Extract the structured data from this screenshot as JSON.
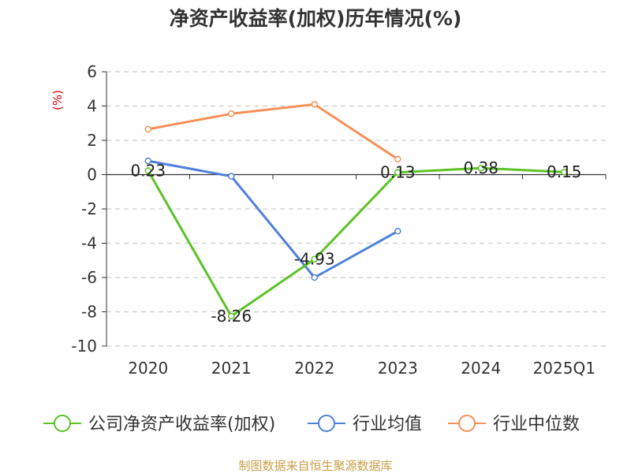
{
  "title": "净资产收益率(加权)历年情况(%)",
  "source": "制图数据来自恒生聚源数据库",
  "chart_data": {
    "type": "line",
    "title": "净资产收益率(加权)历年情况(%)",
    "ylabel": "(%)",
    "categories": [
      "2020",
      "2021",
      "2022",
      "2023",
      "2024",
      "2025Q1"
    ],
    "ylim": [
      -10,
      6
    ],
    "yticks": [
      6,
      4,
      2,
      0,
      -2,
      -4,
      -6,
      -8,
      -10
    ],
    "grid": true,
    "legend_position": "bottom",
    "series": [
      {
        "name": "公司净资产收益率(加权)",
        "color": "#5cc226",
        "values": [
          0.23,
          -8.26,
          -4.93,
          0.13,
          0.38,
          0.15
        ],
        "labels": [
          "0.23",
          "-8.26",
          "-4.93",
          "0.13",
          "0.38",
          "0.15"
        ]
      },
      {
        "name": "行业均值",
        "color": "#4f80d9",
        "values": [
          0.8,
          -0.1,
          -6.0,
          -3.3,
          null,
          null
        ]
      },
      {
        "name": "行业中位数",
        "color": "#f79057",
        "values": [
          2.65,
          3.55,
          4.1,
          0.9,
          null,
          null
        ]
      }
    ]
  }
}
